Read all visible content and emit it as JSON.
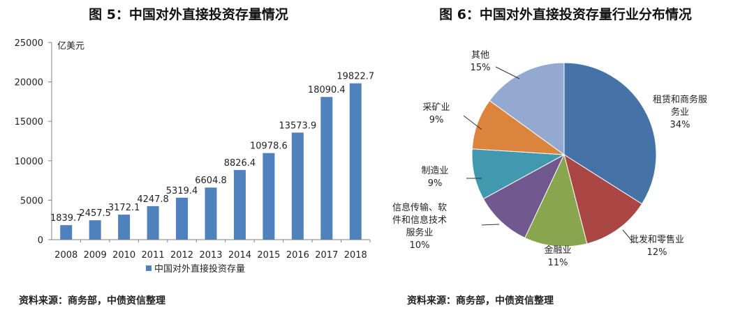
{
  "left": {
    "title": "图 5：中国对外直接投资存量情况",
    "source": "资料来源：商务部，中债资信整理",
    "unit_label": "亿美元"
  },
  "right": {
    "title": "图 6：中国对外直接投资存量行业分布情况",
    "source": "资料来源：商务部，中债资信整理"
  },
  "colors": {
    "bar": "#4f81bd",
    "axis": "#808080"
  },
  "chart_data": [
    {
      "type": "bar",
      "title": "图 5：中国对外直接投资存量情况",
      "ylabel": "亿美元",
      "categories": [
        "2008",
        "2009",
        "2010",
        "2011",
        "2012",
        "2013",
        "2014",
        "2015",
        "2016",
        "2017",
        "2018"
      ],
      "series": [
        {
          "name": "中国对外直接投资存量",
          "values": [
            1839.7,
            2457.5,
            3172.1,
            4247.8,
            5319.4,
            6604.8,
            8826.4,
            10978.6,
            13573.9,
            18090.4,
            19822.7
          ],
          "labels": [
            "1839.7",
            "2457.5",
            "3172.1",
            "4247.8",
            "5319.4",
            "6604.8",
            "8826.4",
            "10978.6",
            "13573.9",
            "18090.4",
            "19822.7"
          ]
        }
      ],
      "ylim": [
        0,
        25000
      ],
      "yticks": [
        "0",
        "5000",
        "10000",
        "15000",
        "20000",
        "25000"
      ],
      "grid": false,
      "legend": "bottom"
    },
    {
      "type": "pie",
      "title": "图 6：中国对外直接投资存量行业分布情况",
      "slices": [
        {
          "label": "租赁和商务服务业",
          "value": 34,
          "pct": "34%",
          "color": "#4572a7"
        },
        {
          "label": "批发和零售业",
          "value": 12,
          "pct": "12%",
          "color": "#aa4643"
        },
        {
          "label": "金融业",
          "value": 11,
          "pct": "11%",
          "color": "#89a54e"
        },
        {
          "label": "信息传输、软件和信息技术服务业",
          "value": 10,
          "pct": "10%",
          "color": "#71588f"
        },
        {
          "label": "制造业",
          "value": 9,
          "pct": "9%",
          "color": "#4198af"
        },
        {
          "label": "采矿业",
          "value": 9,
          "pct": "9%",
          "color": "#db843d"
        },
        {
          "label": "其他",
          "value": 15,
          "pct": "15%",
          "color": "#93a9cf"
        }
      ],
      "slice_label_lines": [
        [
          "租赁和商务服",
          "务业",
          "34%"
        ],
        [
          "批发和零售业",
          "12%"
        ],
        [
          "金融业",
          "11%"
        ],
        [
          "信息传输、软",
          "件和信息技术",
          "服务业",
          "10%"
        ],
        [
          "制造业",
          "9%"
        ],
        [
          "采矿业",
          "9%"
        ],
        [
          "其他",
          "15%"
        ]
      ],
      "start": "12 o'clock",
      "direction": "clockwise"
    }
  ]
}
